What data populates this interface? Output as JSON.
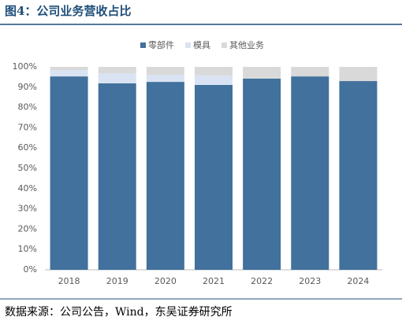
{
  "title": "图4：公司业务营收占比",
  "source": "数据来源：公司公告，Wind，东吴证券研究所",
  "chart_data": {
    "type": "stacked_bar",
    "categories": [
      "2018",
      "2019",
      "2020",
      "2021",
      "2022",
      "2023",
      "2024"
    ],
    "series": [
      {
        "name": "零部件",
        "color": "#41719c",
        "values": [
          95.3,
          91.9,
          92.6,
          91.1,
          94.2,
          95.3,
          93.0
        ]
      },
      {
        "name": "模具",
        "color": "#dae3f3",
        "values": [
          3.1,
          5.0,
          3.5,
          4.7,
          0,
          0,
          0
        ]
      },
      {
        "name": "其他业务",
        "color": "#d9d9d9",
        "values": [
          1.6,
          3.1,
          3.9,
          4.2,
          5.8,
          4.7,
          7.0
        ]
      }
    ],
    "ylim": [
      0,
      100
    ],
    "yticks": [
      {
        "value": 0,
        "label": "0%"
      },
      {
        "value": 10,
        "label": "10%"
      },
      {
        "value": 20,
        "label": "20%"
      },
      {
        "value": 30,
        "label": "30%"
      },
      {
        "value": 40,
        "label": "40%"
      },
      {
        "value": 50,
        "label": "50%"
      },
      {
        "value": 60,
        "label": "60%"
      },
      {
        "value": 70,
        "label": "70%"
      },
      {
        "value": 80,
        "label": "80%"
      },
      {
        "value": 90,
        "label": "90%"
      },
      {
        "value": 100,
        "label": "100%"
      }
    ],
    "legend": "top"
  }
}
